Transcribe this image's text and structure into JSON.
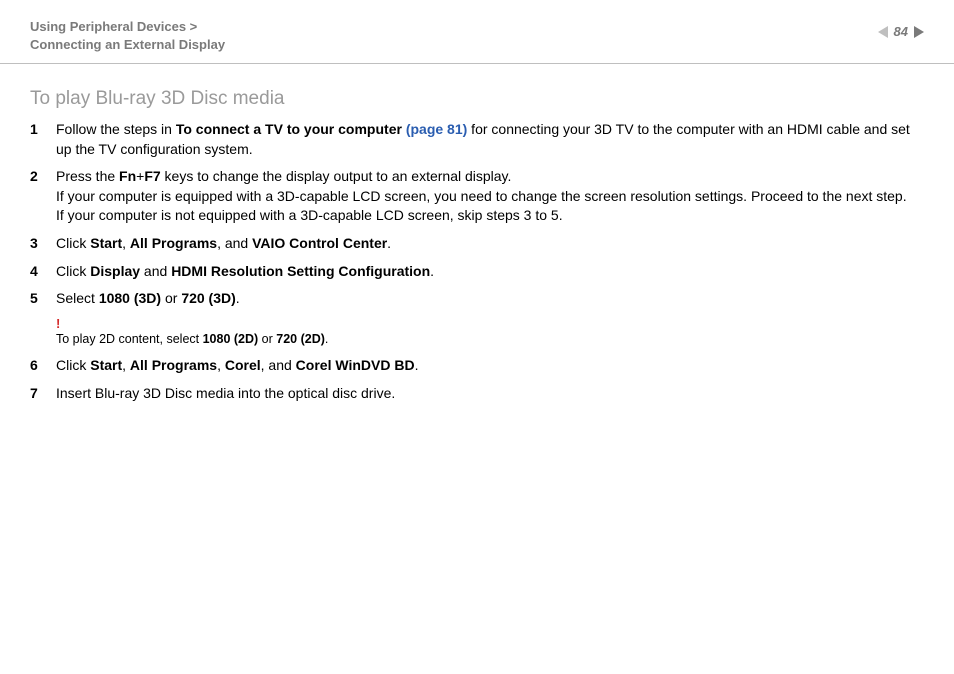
{
  "header": {
    "breadcrumb_line1": "Using Peripheral Devices >",
    "breadcrumb_line2": "Connecting an External Display",
    "page_number": "84"
  },
  "section": {
    "title": "To play Blu-ray 3D Disc media"
  },
  "steps": [
    {
      "num": "1",
      "segments": [
        {
          "t": "Follow the steps in "
        },
        {
          "t": "To connect a TV to your computer",
          "b": true
        },
        {
          "t": " "
        },
        {
          "t": "(page 81)",
          "link": true
        },
        {
          "t": " for connecting your 3D TV to the computer with an HDMI cable and set up the TV configuration system."
        }
      ]
    },
    {
      "num": "2",
      "segments": [
        {
          "t": "Press the "
        },
        {
          "t": "Fn",
          "b": true
        },
        {
          "t": "+"
        },
        {
          "t": "F7",
          "b": true
        },
        {
          "t": " keys to change the display output to an external display."
        },
        {
          "br": true
        },
        {
          "t": "If your computer is equipped with a 3D-capable LCD screen, you need to change the screen resolution settings. Proceed to the next step."
        },
        {
          "br": true
        },
        {
          "t": "If your computer is not equipped with a 3D-capable LCD screen, skip steps 3 to 5."
        }
      ]
    },
    {
      "num": "3",
      "segments": [
        {
          "t": "Click "
        },
        {
          "t": "Start",
          "b": true
        },
        {
          "t": ", "
        },
        {
          "t": "All Programs",
          "b": true
        },
        {
          "t": ", and "
        },
        {
          "t": "VAIO Control Center",
          "b": true
        },
        {
          "t": "."
        }
      ]
    },
    {
      "num": "4",
      "segments": [
        {
          "t": "Click "
        },
        {
          "t": "Display",
          "b": true
        },
        {
          "t": " and "
        },
        {
          "t": "HDMI Resolution Setting Configuration",
          "b": true
        },
        {
          "t": "."
        }
      ]
    },
    {
      "num": "5",
      "segments": [
        {
          "t": "Select "
        },
        {
          "t": "1080 (3D)",
          "b": true
        },
        {
          "t": " or "
        },
        {
          "t": "720 (3D)",
          "b": true
        },
        {
          "t": "."
        }
      ]
    }
  ],
  "note": {
    "bang": "!",
    "segments": [
      {
        "t": "To play 2D content, select "
      },
      {
        "t": "1080 (2D)",
        "b": true
      },
      {
        "t": " or "
      },
      {
        "t": "720 (2D)",
        "b": true
      },
      {
        "t": "."
      }
    ]
  },
  "steps_after": [
    {
      "num": "6",
      "segments": [
        {
          "t": "Click "
        },
        {
          "t": "Start",
          "b": true
        },
        {
          "t": ", "
        },
        {
          "t": "All Programs",
          "b": true
        },
        {
          "t": ", "
        },
        {
          "t": "Corel",
          "b": true
        },
        {
          "t": ", and "
        },
        {
          "t": "Corel WinDVD BD",
          "b": true
        },
        {
          "t": "."
        }
      ]
    },
    {
      "num": "7",
      "segments": [
        {
          "t": "Insert Blu-ray 3D Disc media into the optical disc drive."
        }
      ]
    }
  ],
  "colors": {
    "breadcrumb": "#7a7a7a",
    "title": "#9a9a9a",
    "link": "#2a5db0",
    "bang": "#d42a2a",
    "rule": "#bfbfbf",
    "nav_next": "#7a7a7a",
    "nav_prev": "#bfbfbf"
  }
}
